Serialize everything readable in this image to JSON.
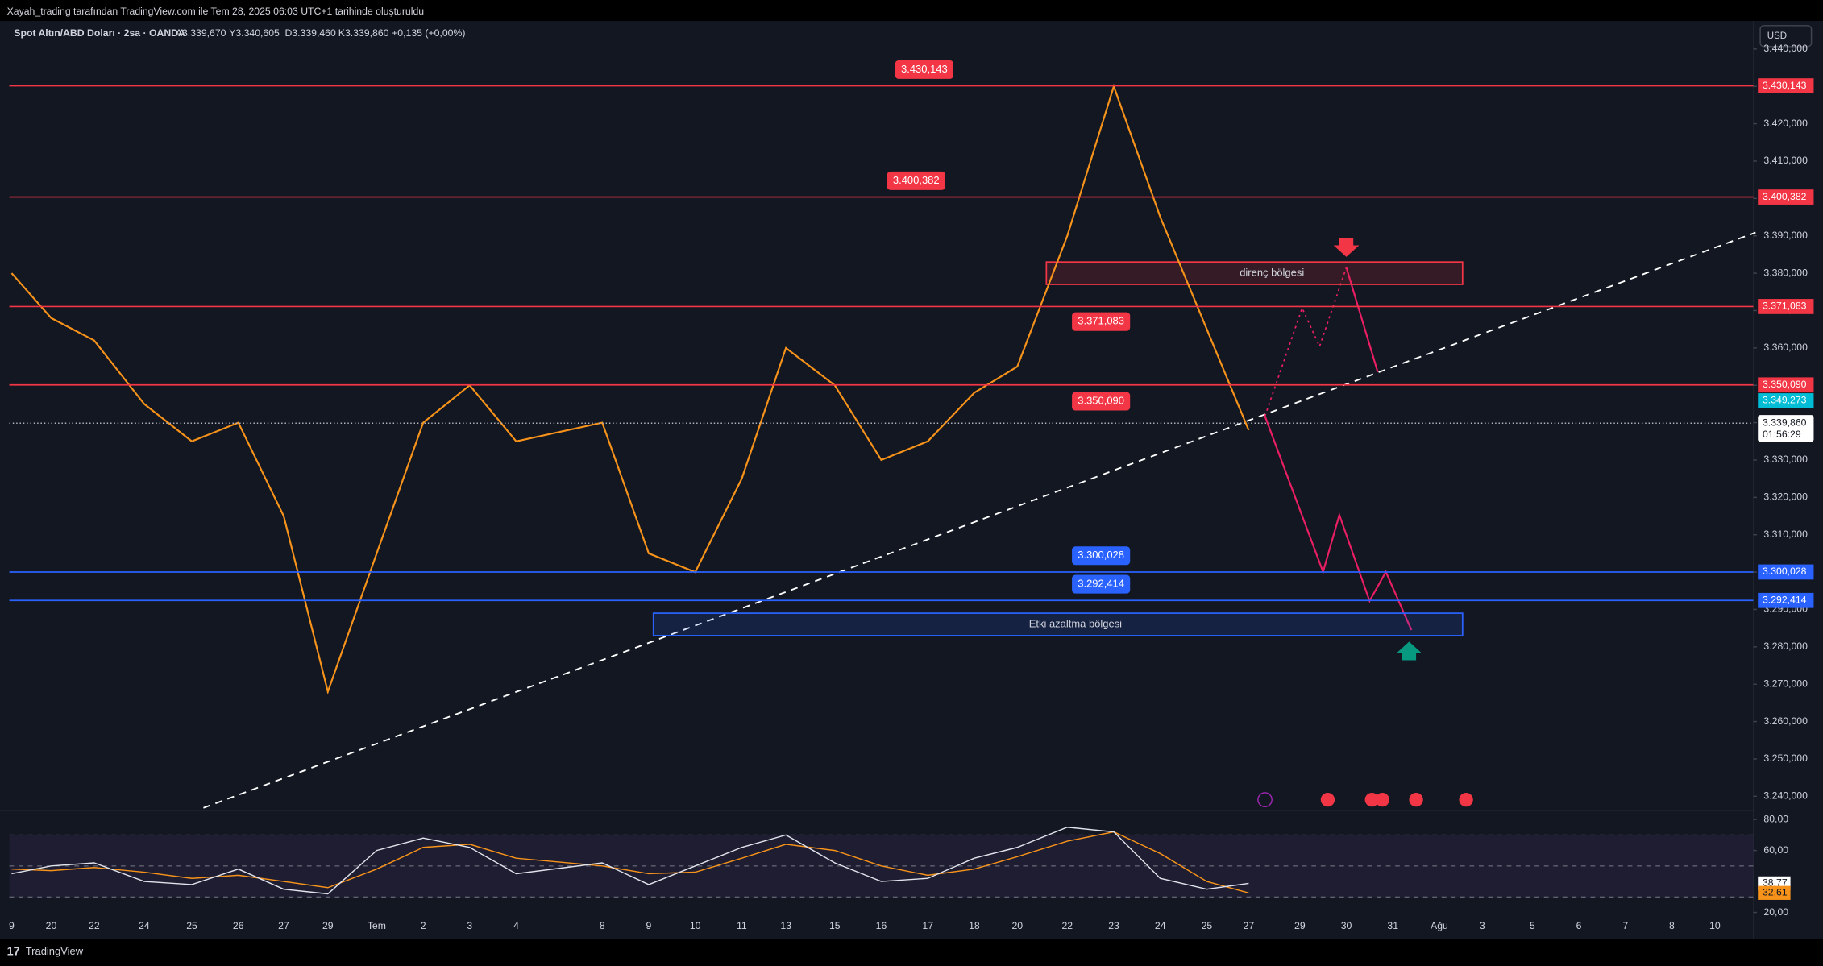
{
  "header": {
    "attribution": "Xayah_trading tarafından TradingView.com ile Tem 28, 2025 06:03 UTC+1 tarihinde oluşturuldu",
    "symbol": "Spot Altın/ABD Doları · 2sa · OANDA",
    "open": "A3.339,670",
    "high": "Y3.340,605",
    "low": "D3.339,460",
    "close": "K3.339,860",
    "change": "+0,135 (+0,00%)",
    "currency": "USD"
  },
  "footer": {
    "brand": "TradingView"
  },
  "chart_data": [
    {
      "type": "line",
      "color": "#f7931a",
      "categories": [
        "9",
        "20",
        "22",
        "24",
        "25",
        "26",
        "27",
        "29",
        "Tem",
        "2",
        "3",
        "4",
        "8",
        "9",
        "10",
        "11",
        "13",
        "15",
        "16",
        "17",
        "18",
        "20",
        "22",
        "23",
        "24",
        "25",
        "27",
        "29",
        "30",
        "31",
        "Ağu",
        "3",
        "5",
        "6",
        "7",
        "8",
        "10"
      ],
      "values": [
        3380,
        3368,
        3362,
        3345,
        3335,
        3340,
        3315,
        3268,
        3305,
        3340,
        3350,
        3335,
        3340,
        3305,
        3300,
        3325,
        3360,
        3350,
        3330,
        3335,
        3348,
        3355,
        3390,
        3430,
        3395,
        3365,
        3338,
        null,
        null,
        null,
        null,
        null,
        null,
        null,
        null,
        null,
        null
      ],
      "ylim": [
        3236.9,
        3447.5
      ],
      "yticks": [
        {
          "value": 3440,
          "label": "3.440,000"
        },
        {
          "value": 3430,
          "label": "3.430,000"
        },
        {
          "value": 3420,
          "label": "3.420,000"
        },
        {
          "value": 3410,
          "label": "3.410,000"
        },
        {
          "value": 3400,
          "label": "3.400,000"
        },
        {
          "value": 3390,
          "label": "3.390,000"
        },
        {
          "value": 3380,
          "label": "3.380,000"
        },
        {
          "value": 3370,
          "label": "3.370,000"
        },
        {
          "value": 3360,
          "label": "3.360,000"
        },
        {
          "value": 3350,
          "label": "3.350,000"
        },
        {
          "value": 3340,
          "label": "3.340,000"
        },
        {
          "value": 3330,
          "label": "3.330,000"
        },
        {
          "value": 3320,
          "label": "3.320,000"
        },
        {
          "value": 3310,
          "label": "3.310,000"
        },
        {
          "value": 3300,
          "label": "3.300,000"
        },
        {
          "value": 3290,
          "label": "3.290,000"
        },
        {
          "value": 3280,
          "label": "3.280,000"
        },
        {
          "value": 3270,
          "label": "3.270,000"
        },
        {
          "value": 3260,
          "label": "3.260,000"
        },
        {
          "value": 3250,
          "label": "3.250,000"
        },
        {
          "value": 3240,
          "label": "3.240,000"
        }
      ],
      "levels": [
        {
          "value": 3430.143,
          "label": "3.430,143",
          "color": "#f23645"
        },
        {
          "value": 3400.382,
          "label": "3.400,382",
          "color": "#f23645"
        },
        {
          "value": 3371.083,
          "label": "3.371,083",
          "color": "#f23645"
        },
        {
          "value": 3350.09,
          "label": "3.350,090",
          "color": "#f23645"
        },
        {
          "value": 3300.028,
          "label": "3.300,028",
          "color": "#2962ff"
        },
        {
          "value": 3292.414,
          "label": "3.292,414",
          "color": "#2962ff"
        }
      ],
      "zones": [
        {
          "label": "direnç bölgesi",
          "top": 3383,
          "bottom": 3377,
          "color": "#f23645"
        },
        {
          "label": "Etki azaltma bölgesi",
          "top": 3289,
          "bottom": 3283,
          "color": "#2962ff"
        }
      ],
      "last_price": {
        "value": 3339.86,
        "label": "3.339,860"
      },
      "countdown": "01:56:29",
      "ema_last": {
        "value": 3349.273,
        "label": "3.349,273"
      }
    },
    {
      "type": "line",
      "color": "#e0e3eb",
      "ma_color": "#f7931a",
      "values": [
        45,
        50,
        52,
        40,
        38,
        48,
        35,
        32,
        60,
        68,
        62,
        45,
        52,
        38,
        50,
        62,
        70,
        52,
        40,
        42,
        55,
        62,
        75,
        72,
        42,
        35,
        38.77,
        null,
        null,
        null,
        null,
        null,
        null,
        null,
        null,
        null,
        null
      ],
      "ma_values": [
        48,
        47,
        49,
        46,
        42,
        44,
        40,
        36,
        48,
        62,
        64,
        55,
        50,
        45,
        46,
        55,
        64,
        60,
        50,
        44,
        48,
        56,
        66,
        72,
        58,
        40,
        32.61,
        null,
        null,
        null,
        null,
        null,
        null,
        null,
        null,
        null,
        null
      ],
      "ylim": [
        16.25,
        85.25
      ],
      "yticks": [
        {
          "value": 80,
          "label": "80,00"
        },
        {
          "value": 60,
          "label": "60,00"
        },
        {
          "value": 20,
          "label": "20,00"
        }
      ],
      "hlines": [
        70,
        50,
        30
      ],
      "last_value": {
        "value": 38.77,
        "label": "38,77"
      },
      "last_ma": {
        "value": 32.61,
        "label": "32,61"
      }
    }
  ]
}
